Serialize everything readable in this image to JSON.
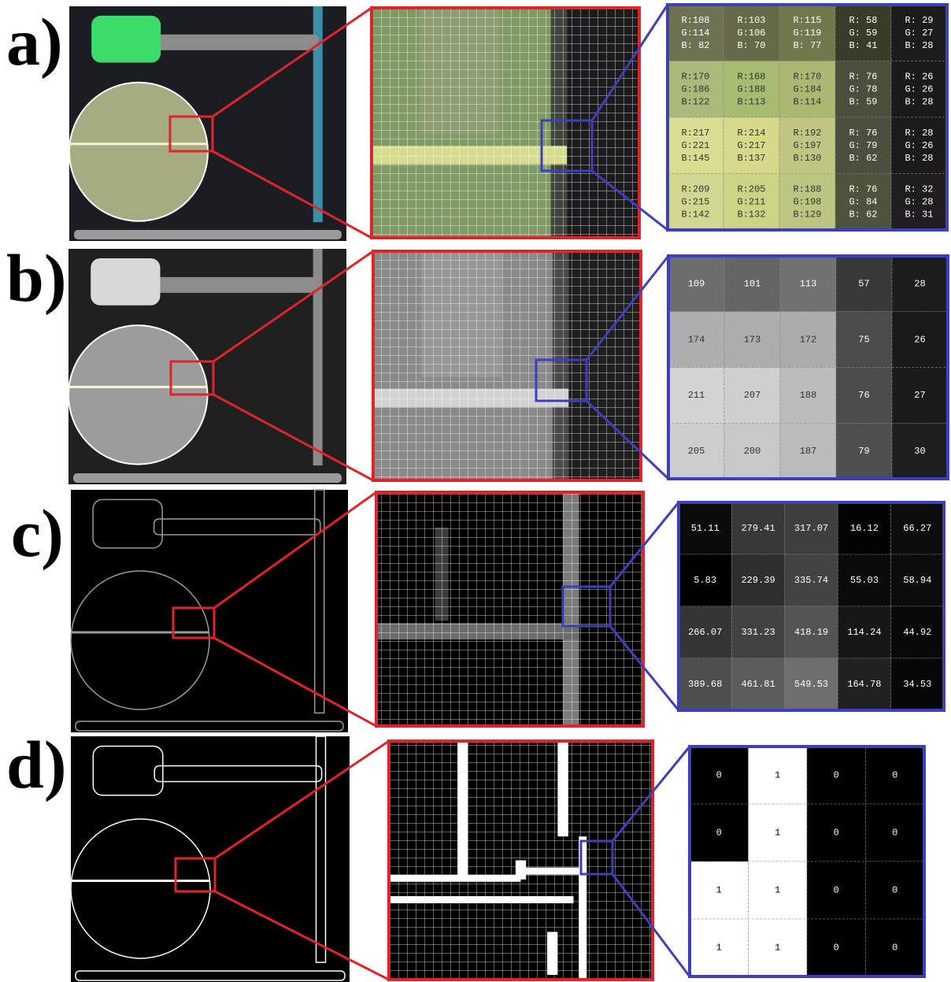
{
  "panels": [
    {
      "label": "a)",
      "table": {
        "rows": [
          [
            [
              "R:108",
              "G:114",
              "B: 82"
            ],
            [
              "R:103",
              "G:106",
              "B: 70"
            ],
            [
              "R:115",
              "G:119",
              "B: 77"
            ],
            [
              "R: 58",
              "G: 59",
              "B: 41"
            ],
            [
              "R: 29",
              "G: 27",
              "B: 28"
            ]
          ],
          [
            [
              "R:170",
              "G:186",
              "B:122"
            ],
            [
              "R:168",
              "G:188",
              "B:113"
            ],
            [
              "R:170",
              "G:184",
              "B:114"
            ],
            [
              "R: 76",
              "G: 78",
              "B: 59"
            ],
            [
              "R: 26",
              "G: 26",
              "B: 28"
            ]
          ],
          [
            [
              "R:217",
              "G:221",
              "B:145"
            ],
            [
              "R:214",
              "G:217",
              "B:137"
            ],
            [
              "R:192",
              "G:197",
              "B:130"
            ],
            [
              "R: 76",
              "G: 79",
              "B: 62"
            ],
            [
              "R: 28",
              "G: 26",
              "B: 28"
            ]
          ],
          [
            [
              "R:209",
              "G:215",
              "B:142"
            ],
            [
              "R:205",
              "G:211",
              "B:132"
            ],
            [
              "R:188",
              "G:198",
              "B:129"
            ],
            [
              "R: 76",
              "G: 84",
              "B: 62"
            ],
            [
              "R: 32",
              "G: 28",
              "B: 31"
            ]
          ]
        ]
      }
    },
    {
      "label": "b)",
      "table": {
        "rows": [
          [
            109,
            101,
            113,
            57,
            28
          ],
          [
            174,
            173,
            172,
            75,
            26
          ],
          [
            211,
            207,
            188,
            76,
            27
          ],
          [
            205,
            200,
            187,
            79,
            30
          ]
        ]
      }
    },
    {
      "label": "c)",
      "table": {
        "rows": [
          [
            51.11,
            279.41,
            317.07,
            16.12,
            66.27
          ],
          [
            5.83,
            229.39,
            335.74,
            55.03,
            58.94
          ],
          [
            266.07,
            331.23,
            418.19,
            114.24,
            44.92
          ],
          [
            389.68,
            461.81,
            549.53,
            164.78,
            34.53
          ]
        ]
      }
    },
    {
      "label": "d)",
      "table": {
        "rows": [
          [
            0,
            1,
            0,
            0
          ],
          [
            0,
            1,
            0,
            0
          ],
          [
            1,
            1,
            0,
            0
          ],
          [
            1,
            1,
            0,
            0
          ]
        ]
      }
    }
  ]
}
